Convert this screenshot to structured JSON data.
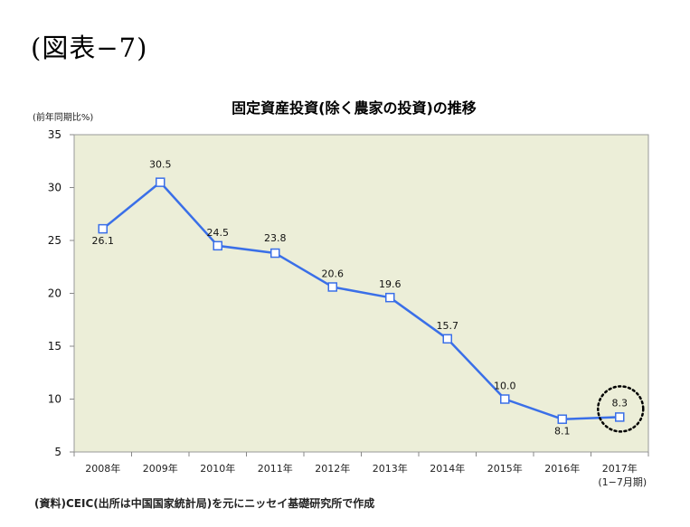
{
  "figure_label": "(図表−7)",
  "unit_label": "(前年同期比%)",
  "source_note": "(資料)CEIC(出所は中国国家統計局)を元にニッセイ基礎研究所で作成",
  "colors": {
    "plot_bg": "#eceed8",
    "line": "#3a6fe8",
    "marker_fill": "#ffffff",
    "axis": "#888888",
    "highlight_circle": "#000000"
  },
  "chart_data": {
    "type": "line",
    "title": "固定資産投資(除く農家の投資)の推移",
    "xlabel": "",
    "ylabel": "(前年同期比%)",
    "categories": [
      "2008年",
      "2009年",
      "2010年",
      "2011年",
      "2012年",
      "2013年",
      "2014年",
      "2015年",
      "2016年",
      "2017年"
    ],
    "category_sublabels": [
      "",
      "",
      "",
      "",
      "",
      "",
      "",
      "",
      "",
      "(1−7月期)"
    ],
    "values": [
      26.1,
      30.5,
      24.5,
      23.8,
      20.6,
      19.6,
      15.7,
      10.0,
      8.1,
      8.3
    ],
    "value_labels": [
      "26.1",
      "30.5",
      "24.5",
      "23.8",
      "20.6",
      "19.6",
      "15.7",
      "10.0",
      "8.1",
      "8.3"
    ],
    "ylim": [
      5,
      35
    ],
    "yticks": [
      5,
      10,
      15,
      20,
      25,
      30,
      35
    ],
    "grid": false,
    "legend": "none",
    "highlight_index": 9,
    "highlight_style": "dotted-circle"
  }
}
